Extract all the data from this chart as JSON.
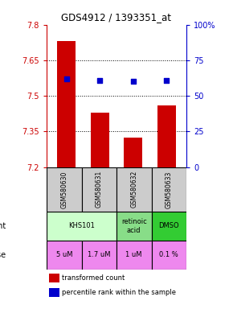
{
  "title": "GDS4912 / 1393351_at",
  "samples": [
    "GSM580630",
    "GSM580631",
    "GSM580632",
    "GSM580633"
  ],
  "bar_values": [
    7.73,
    7.43,
    7.325,
    7.46
  ],
  "bar_bottom": 7.2,
  "scatter_pct": [
    62,
    61,
    60,
    61
  ],
  "ylim_left": [
    7.2,
    7.8
  ],
  "ylim_right": [
    0,
    100
  ],
  "yticks_left": [
    7.2,
    7.35,
    7.5,
    7.65,
    7.8
  ],
  "ytick_labels_left": [
    "7.2",
    "7.35",
    "7.5",
    "7.65",
    "7.8"
  ],
  "yticks_right": [
    0,
    25,
    50,
    75,
    100
  ],
  "ytick_labels_right": [
    "0",
    "25",
    "50",
    "75",
    "100%"
  ],
  "hlines": [
    7.35,
    7.5,
    7.65
  ],
  "bar_color": "#cc0000",
  "scatter_color": "#0000cc",
  "agent_spans": [
    [
      0,
      2,
      "KHS101",
      "#ccffcc"
    ],
    [
      2,
      3,
      "retinoic\nacid",
      "#88dd88"
    ],
    [
      3,
      4,
      "DMSO",
      "#33cc33"
    ]
  ],
  "dose_labels": [
    "5 uM",
    "1.7 uM",
    "1 uM",
    "0.1 %"
  ],
  "dose_color": "#ee88ee",
  "sample_bg_color": "#cccccc",
  "legend_red_label": "transformed count",
  "legend_blue_label": "percentile rank within the sample",
  "bar_width": 0.55
}
